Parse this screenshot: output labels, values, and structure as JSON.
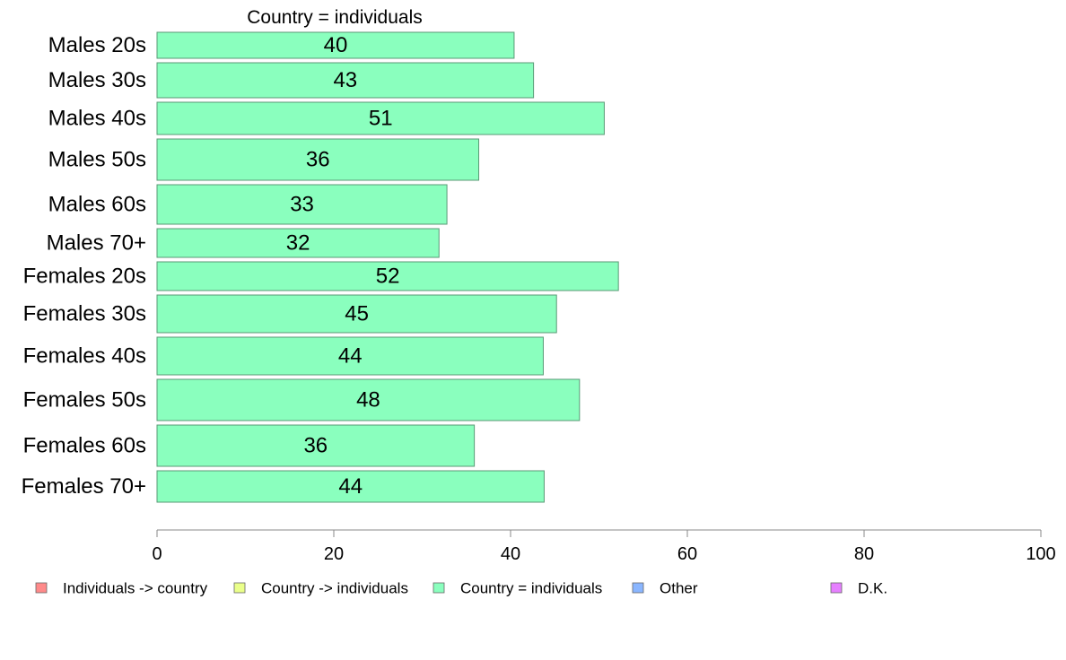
{
  "chart_data": {
    "type": "bar",
    "orientation": "horizontal",
    "title": "Country = individuals",
    "xlabel": "",
    "ylabel": "",
    "xlim": [
      0,
      100
    ],
    "x_ticks": [
      0,
      20,
      40,
      60,
      80,
      100
    ],
    "grid": false,
    "categories": [
      "Males 20s",
      "Males 30s",
      "Males 40s",
      "Males 50s",
      "Males 60s",
      "Males 70+",
      "Females 20s",
      "Females 30s",
      "Females 40s",
      "Females 50s",
      "Females 60s",
      "Females 70+"
    ],
    "category_widths": [
      29,
      39,
      36,
      46,
      44,
      32,
      32,
      42,
      42,
      46,
      46,
      35
    ],
    "series": [
      {
        "name": "Country = individuals",
        "values": [
          40.4,
          42.6,
          50.6,
          36.4,
          32.8,
          31.9,
          52.2,
          45.2,
          43.7,
          47.8,
          35.9,
          43.8
        ],
        "labels": [
          "40",
          "43",
          "51",
          "36",
          "33",
          "32",
          "52",
          "45",
          "44",
          "48",
          "36",
          "44"
        ],
        "color": "#8affbe"
      }
    ],
    "legend": {
      "position": "bottom",
      "items": [
        {
          "label": "Individuals -> country",
          "color": "#ff8a8a"
        },
        {
          "label": "Country -> individuals",
          "color": "#eaff8a"
        },
        {
          "label": "Country = individuals",
          "color": "#8affbe"
        },
        {
          "label": "Other",
          "color": "#8ab6ff"
        },
        {
          "label": "D.K.",
          "color": "#e680ff"
        }
      ]
    },
    "colors": {
      "bar_stroke": "#5a9a76",
      "axis": "#888888"
    }
  }
}
